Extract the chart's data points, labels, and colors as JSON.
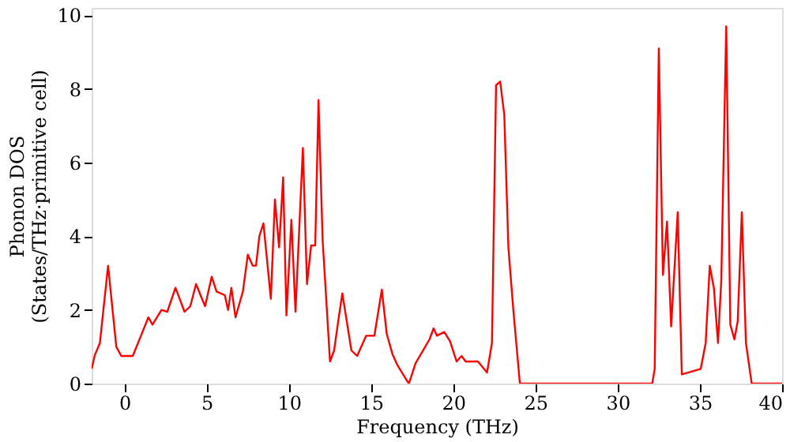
{
  "chart_data": {
    "type": "line",
    "xlabel": "Frequency (THz)",
    "ylabel": "Phonon DOS\n(States/THz·primitive cell)",
    "x": [
      -2,
      -1.8,
      -1.5,
      -1.0,
      -0.5,
      -0.2,
      0.5,
      1.0,
      1.45,
      1.7,
      2.25,
      2.6,
      3.1,
      3.65,
      4.0,
      4.35,
      4.9,
      5.3,
      5.6,
      6.1,
      6.3,
      6.5,
      6.75,
      7.2,
      7.5,
      7.8,
      8.0,
      8.2,
      8.45,
      8.9,
      9.15,
      9.4,
      9.65,
      9.85,
      10.15,
      10.4,
      10.85,
      11.1,
      11.35,
      11.6,
      11.8,
      12.05,
      12.5,
      12.75,
      13.0,
      13.25,
      13.8,
      14.15,
      14.7,
      15.2,
      15.65,
      15.95,
      16.3,
      16.6,
      17.15,
      17.3,
      17.7,
      18.55,
      18.8,
      19.0,
      19.45,
      19.8,
      20.2,
      20.5,
      20.75,
      21.5,
      22.05,
      22.35,
      22.6,
      22.85,
      23.1,
      23.35,
      23.65,
      24.05,
      32.1,
      32.25,
      32.5,
      32.75,
      33.0,
      33.25,
      33.65,
      33.9,
      35.05,
      35.35,
      35.6,
      35.85,
      36.1,
      36.3,
      36.6,
      36.85,
      37.1,
      37.3,
      37.55,
      37.8,
      38.15,
      40
    ],
    "series": [
      {
        "color": "#ff0000",
        "values": [
          0.4,
          0.78,
          1.1,
          3.2,
          1.0,
          0.75,
          0.75,
          1.3,
          1.8,
          1.6,
          2.0,
          1.95,
          2.6,
          1.95,
          2.1,
          2.7,
          2.1,
          2.9,
          2.5,
          2.4,
          2.0,
          2.6,
          1.8,
          2.5,
          3.5,
          3.2,
          3.2,
          4.0,
          4.35,
          2.3,
          5.0,
          3.7,
          5.6,
          1.85,
          4.45,
          1.95,
          6.4,
          2.7,
          3.75,
          3.75,
          7.7,
          3.9,
          0.6,
          0.9,
          1.7,
          2.45,
          0.9,
          0.75,
          1.3,
          1.3,
          2.55,
          1.35,
          0.8,
          0.5,
          0.1,
          0.0,
          0.55,
          1.2,
          1.5,
          1.3,
          1.4,
          1.15,
          0.6,
          0.75,
          0.6,
          0.6,
          0.3,
          1.1,
          8.1,
          8.2,
          7.3,
          3.7,
          2.0,
          0.0,
          0.0,
          0.4,
          9.1,
          2.95,
          4.4,
          1.55,
          4.65,
          0.25,
          0.4,
          1.1,
          3.2,
          2.6,
          1.1,
          2.8,
          9.7,
          1.6,
          1.2,
          1.7,
          4.65,
          1.1,
          0.0,
          0.0
        ]
      }
    ],
    "xlim": [
      -2,
      40
    ],
    "ylim": [
      0,
      10.2
    ],
    "xticks": [
      0,
      5,
      10,
      15,
      20,
      25,
      30,
      35,
      40
    ],
    "yticks": [
      0,
      2,
      4,
      6,
      8,
      10
    ],
    "grid": false,
    "line_style": "solid",
    "marker": "none"
  }
}
